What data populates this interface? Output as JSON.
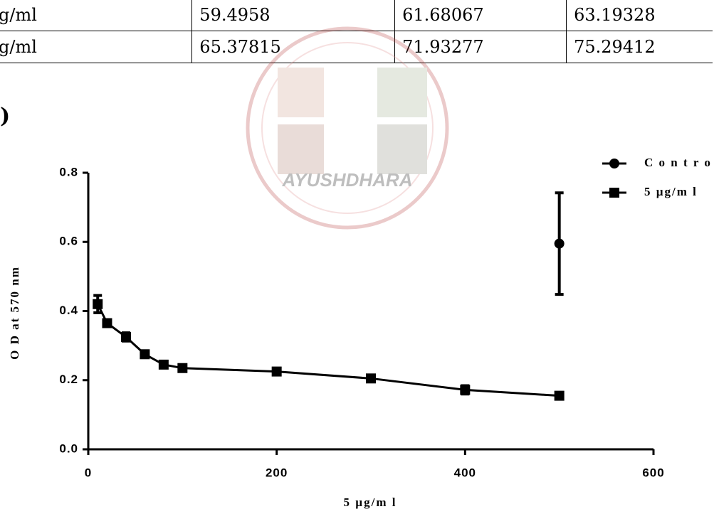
{
  "label": ")",
  "watermark": "AYUSHDHARA",
  "table": {
    "rows": [
      [
        "g/ml",
        "59.4958",
        "61.68067",
        "63.19328"
      ],
      [
        "g/ml",
        "65.37815",
        "71.93277",
        "75.29412"
      ]
    ]
  },
  "chart_data": {
    "type": "line",
    "xlabel": "5 µg/m l",
    "ylabel": "O D at 570 nm",
    "xlim": [
      0,
      600
    ],
    "xticks": [
      0,
      200,
      400,
      600
    ],
    "ylim": [
      0,
      0.8
    ],
    "yticks": [
      {
        "value": 0,
        "label": "0.0"
      },
      0.2,
      0.4,
      0.6,
      0.8
    ],
    "legend": "top-right",
    "series": [
      {
        "name": "C o n t r o l",
        "color": "#000000",
        "marker": "circle",
        "x": [
          500
        ],
        "values": [
          0.595
        ],
        "errors": [
          0.147
        ]
      },
      {
        "name": "5 µg/m l",
        "color": "#000000",
        "marker": "square",
        "x": [
          10,
          20,
          40,
          60,
          80,
          100,
          200,
          300,
          400,
          500
        ],
        "values": [
          0.42,
          0.365,
          0.325,
          0.275,
          0.245,
          0.235,
          0.225,
          0.205,
          0.172,
          0.155
        ],
        "errors": [
          0.025,
          0,
          0.012,
          0,
          0,
          0,
          0,
          0,
          0.012,
          0
        ]
      }
    ]
  }
}
